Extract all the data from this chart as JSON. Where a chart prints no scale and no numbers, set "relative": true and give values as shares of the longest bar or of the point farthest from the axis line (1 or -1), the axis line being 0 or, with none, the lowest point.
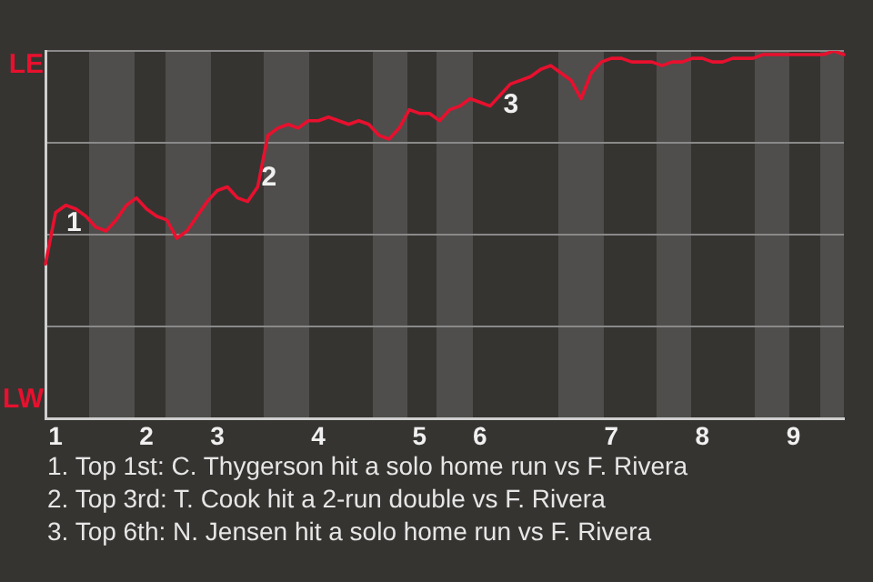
{
  "chart_data": {
    "type": "line",
    "relative": true,
    "categories": [
      null,
      "1",
      null,
      null,
      null,
      null,
      null,
      null,
      null,
      null,
      "2",
      null,
      null,
      null,
      null,
      null,
      null,
      "3",
      null,
      null,
      null,
      null,
      null,
      null,
      null,
      null,
      null,
      "4",
      null,
      null,
      null,
      null,
      null,
      null,
      null,
      null,
      null,
      "5",
      null,
      null,
      null,
      null,
      null,
      "6",
      null,
      null,
      null,
      null,
      null,
      null,
      null,
      null,
      null,
      null,
      null,
      null,
      "7",
      null,
      null,
      null,
      null,
      null,
      null,
      null,
      null,
      "8",
      null,
      null,
      null,
      null,
      null,
      null,
      null,
      null,
      "9",
      null,
      null,
      null,
      null,
      null
    ],
    "values": [
      0.42,
      0.56,
      0.58,
      0.57,
      0.55,
      0.52,
      0.51,
      0.54,
      0.58,
      0.6,
      0.57,
      0.55,
      0.54,
      0.49,
      0.51,
      0.55,
      0.59,
      0.62,
      0.63,
      0.6,
      0.59,
      0.63,
      0.77,
      0.79,
      0.8,
      0.79,
      0.81,
      0.81,
      0.82,
      0.81,
      0.8,
      0.81,
      0.8,
      0.77,
      0.76,
      0.79,
      0.84,
      0.83,
      0.83,
      0.81,
      0.84,
      0.85,
      0.87,
      0.86,
      0.85,
      0.88,
      0.91,
      0.92,
      0.93,
      0.95,
      0.96,
      0.94,
      0.92,
      0.87,
      0.94,
      0.97,
      0.98,
      0.98,
      0.97,
      0.97,
      0.97,
      0.96,
      0.97,
      0.97,
      0.98,
      0.98,
      0.97,
      0.97,
      0.98,
      0.98,
      0.98,
      0.99,
      0.99,
      0.99,
      0.99,
      0.99,
      0.99,
      0.99,
      1.0,
      0.99
    ],
    "color": "#e8102e",
    "marker": "none",
    "grid": "y",
    "annotations": [
      "LE",
      "LW",
      "2",
      "3",
      {
        "text": "1",
        "x": "1",
        "y": 0.56
      },
      "1. Top 1st: C. Thygerson hit a solo home run vs F. Rivera",
      "2. Top 3rd: T. Cook hit a 2-run double vs F. Rivera",
      "3. Top 6th: N. Jensen hit a solo home run vs F. Rivera"
    ]
  }
}
